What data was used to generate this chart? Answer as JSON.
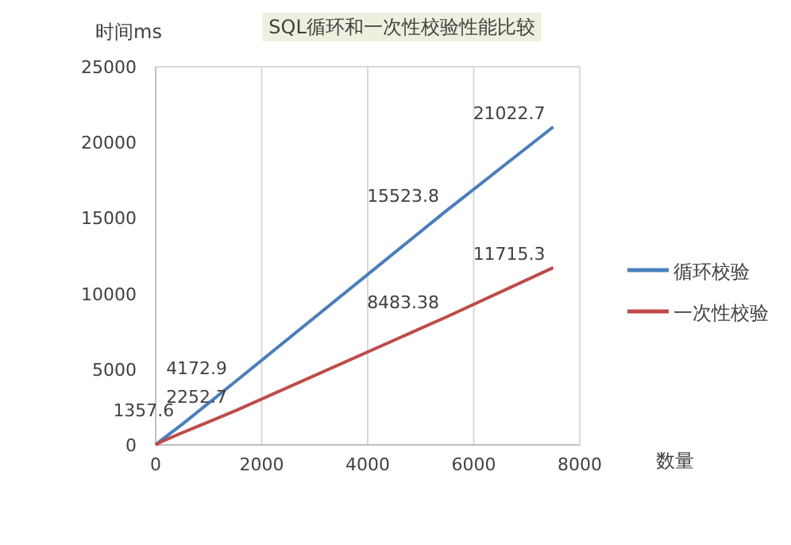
{
  "chart_data": {
    "type": "line",
    "title": "SQL循环和一次性校验性能比较",
    "xlabel": "数量",
    "ylabel": "时间ms",
    "xlim": [
      0,
      8000
    ],
    "xticks": [
      0,
      2000,
      4000,
      6000,
      8000
    ],
    "ylim": [
      0,
      25000
    ],
    "yticks": [
      0,
      5000,
      10000,
      15000,
      20000,
      25000
    ],
    "grid": "x",
    "legend": "right",
    "marker": "none",
    "series": [
      {
        "name": "循环校验",
        "color": "#4a7ebb",
        "x": [
          0,
          100,
          500,
          1500,
          5500,
          7500
        ],
        "values": [
          0,
          300,
          1357.6,
          4172.9,
          15523.8,
          21022.7
        ],
        "value_labels": [
          null,
          null,
          "1357.6",
          "4172.9",
          "15523.8",
          "21022.7"
        ]
      },
      {
        "name": "一次性校验",
        "color": "#be4b48",
        "x": [
          0,
          100,
          500,
          1500,
          5500,
          7500
        ],
        "values": [
          0,
          200,
          800,
          2252.7,
          8483.38,
          11715.3
        ],
        "value_labels": [
          null,
          null,
          null,
          "2252.7",
          "8483.38",
          "11715.3"
        ]
      }
    ]
  }
}
